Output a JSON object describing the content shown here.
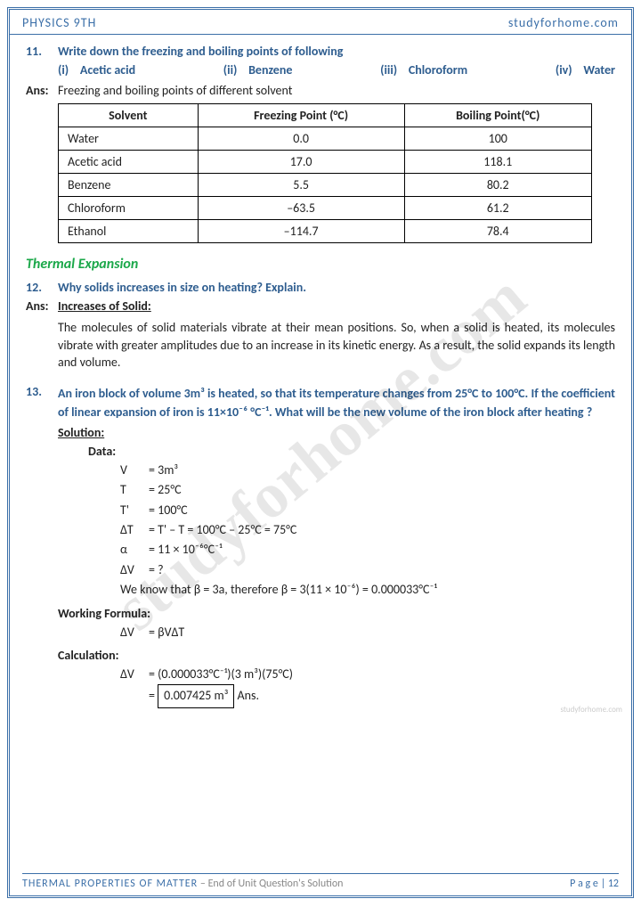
{
  "hdr": {
    "l": "PHYSICS 9TH",
    "r": "studyforhome.com"
  },
  "q11": {
    "n": "11.",
    "t": "Write down the freezing and boiling points of following",
    "opts": [
      [
        "(i)",
        "Acetic acid"
      ],
      [
        "(ii)",
        "Benzene"
      ],
      [
        "(iii)",
        "Chloroform"
      ],
      [
        "(iv)",
        "Water"
      ]
    ],
    "al": "Ans:",
    "at": "Freezing and boiling points of different solvent",
    "th": [
      "Solvent",
      "Freezing Point (°C)",
      "Boiling Point(°C)"
    ],
    "rows": [
      [
        "Water",
        "0.0",
        "100"
      ],
      [
        "Acetic acid",
        "17.0",
        "118.1"
      ],
      [
        "Benzene",
        "5.5",
        "80.2"
      ],
      [
        "Chloroform",
        "–63.5",
        "61.2"
      ],
      [
        "Ethanol",
        "–114.7",
        "78.4"
      ]
    ]
  },
  "sec": "Thermal Expansion",
  "q12": {
    "n": "12.",
    "t": "Why solids increases in size on heating? Explain.",
    "al": "Ans:",
    "h": "Increases of Solid:",
    "b": "The molecules of solid materials vibrate at their mean positions. So, when a solid is heated, its molecules vibrate with greater amplitudes due to an increase in its kinetic energy. As a result, the solid expands its length and volume."
  },
  "q13": {
    "n": "13.",
    "t": "An iron block of volume 3m³ is heated, so that its temperature changes from 25°C to 100°C. If the coefficient of linear expansion of iron is 11×10⁻⁶ °C⁻¹. What will be the new volume of the iron block after heating ?",
    "sol": "Solution:",
    "data": "Data:",
    "d": [
      [
        "V",
        "= 3m³"
      ],
      [
        "T",
        "= 25°C"
      ],
      [
        "T'",
        "= 100°C"
      ],
      [
        "ΔT",
        "= T' – T = 100°C – 25°C = 75°C"
      ],
      [
        "α",
        "=  11 × 10⁻⁶°C⁻¹"
      ],
      [
        "ΔV",
        "= ?"
      ]
    ],
    "note": "We know that β = 3a, therefore β = 3(11 × 10⁻⁶) = 0.000033°C⁻¹",
    "wf": "Working Formula:",
    "wfv": [
      "ΔV",
      "= βVΔT"
    ],
    "calc": "Calculation:",
    "cv": [
      "ΔV",
      "= (0.000033°C⁻¹)(3 m³)(75°C)"
    ],
    "ans": "0.007425 m³",
    "anst": " Ans."
  },
  "ftr": {
    "t": "THERMAL PROPERTIES OF MATTER",
    "s": " – End of Unit Question's Solution",
    "p": "P a g e  | 12"
  },
  "wm": "studyforhome.com",
  "sm": "studyforhome.com"
}
